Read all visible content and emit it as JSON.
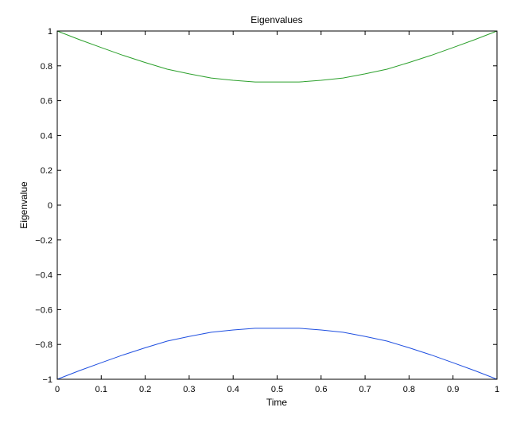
{
  "chart_data": {
    "type": "line",
    "title": "Eigenvalues",
    "xlabel": "Time",
    "ylabel": "Eigenvalue",
    "xlim": [
      0,
      1
    ],
    "ylim": [
      -1,
      1
    ],
    "x_ticks": [
      0,
      0.1,
      0.2,
      0.3,
      0.4,
      0.5,
      0.6,
      0.7,
      0.8,
      0.9,
      1
    ],
    "x_tick_labels": [
      "0",
      "0.1",
      "0.2",
      "0.3",
      "0.4",
      "0.5",
      "0.6",
      "0.7",
      "0.8",
      "0.9",
      "1"
    ],
    "y_ticks": [
      1,
      0.8,
      0.6,
      0.4,
      0.2,
      0,
      -0.2,
      -0.4,
      -0.6,
      -0.8,
      -1
    ],
    "y_tick_labels": [
      "1",
      "0.8",
      "0.6",
      "0.4",
      "0.2",
      "0",
      "−0.2",
      "−0.4",
      "−0.6",
      "−0.8",
      "−1"
    ],
    "grid": false,
    "x": [
      0,
      0.05,
      0.1,
      0.15,
      0.2,
      0.25,
      0.3,
      0.35,
      0.4,
      0.45,
      0.5,
      0.55,
      0.6,
      0.65,
      0.7,
      0.75,
      0.8,
      0.85,
      0.9,
      0.95,
      1
    ],
    "series": [
      {
        "color": "#2ca02c",
        "values": [
          1.0,
          0.951,
          0.905,
          0.86,
          0.819,
          0.781,
          0.754,
          0.73,
          0.717,
          0.707,
          0.707,
          0.707,
          0.717,
          0.73,
          0.754,
          0.781,
          0.819,
          0.86,
          0.905,
          0.951,
          1.0
        ]
      },
      {
        "color": "#1f4fe0",
        "values": [
          -1.0,
          -0.951,
          -0.905,
          -0.86,
          -0.819,
          -0.781,
          -0.754,
          -0.73,
          -0.717,
          -0.707,
          -0.707,
          -0.707,
          -0.717,
          -0.73,
          -0.754,
          -0.781,
          -0.819,
          -0.86,
          -0.905,
          -0.951,
          -1.0
        ]
      }
    ]
  }
}
